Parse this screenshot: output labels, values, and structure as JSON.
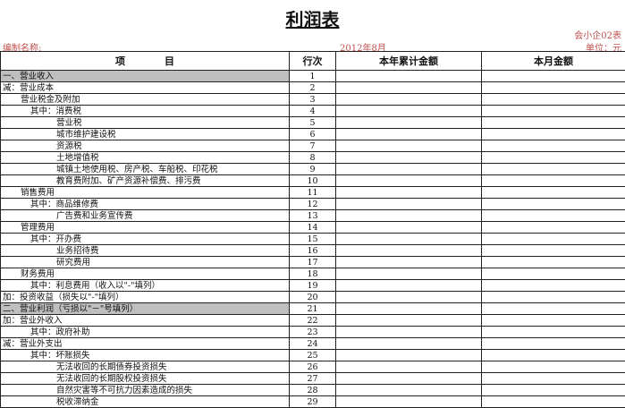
{
  "title": "利润表",
  "form_code": "会小企02表",
  "compiler_label": "编制名称:",
  "period": "2012年8月",
  "unit": "单位：元",
  "headers": {
    "item": "项　　　　目",
    "line": "行次",
    "ytd": "本年累计金额",
    "month": "本月金额"
  },
  "rows": [
    {
      "item": "一、营业收入",
      "line": "1",
      "indent": 0,
      "gray": true
    },
    {
      "item": "减：营业成本",
      "line": "2",
      "indent": 0
    },
    {
      "item": "营业税金及附加",
      "line": "3",
      "indent": 1
    },
    {
      "item": "其中：消费税",
      "line": "4",
      "indent": 2
    },
    {
      "item": "营业税",
      "line": "5",
      "indent": 3
    },
    {
      "item": "城市维护建设税",
      "line": "6",
      "indent": 3
    },
    {
      "item": "资源税",
      "line": "7",
      "indent": 3
    },
    {
      "item": "土地增值税",
      "line": "8",
      "indent": 3
    },
    {
      "item": "城镇土地使用税、房产税、车船税、印花税",
      "line": "9",
      "indent": 3
    },
    {
      "item": "教育费附加、矿产资源补偿费、排污费",
      "line": "10",
      "indent": 3
    },
    {
      "item": "销售费用",
      "line": "11",
      "indent": 1
    },
    {
      "item": "其中：商品维修费",
      "line": "12",
      "indent": 2
    },
    {
      "item": "广告费和业务宣传费",
      "line": "13",
      "indent": 3
    },
    {
      "item": "管理费用",
      "line": "14",
      "indent": 1
    },
    {
      "item": "其中：开办费",
      "line": "15",
      "indent": 2
    },
    {
      "item": "业务招待费",
      "line": "16",
      "indent": 3
    },
    {
      "item": "研究费用",
      "line": "17",
      "indent": 3
    },
    {
      "item": "财务费用",
      "line": "18",
      "indent": 1
    },
    {
      "item": "其中：利息费用（收入以\"-\"填列）",
      "line": "19",
      "indent": 2
    },
    {
      "item": "加：投资收益（损失以\"-\"填列）",
      "line": "20",
      "indent": 0
    },
    {
      "item": "二、营业利润（亏损以\"－\"号填列）",
      "line": "21",
      "indent": 0,
      "gray": true
    },
    {
      "item": "加：营业外收入",
      "line": "22",
      "indent": 0
    },
    {
      "item": "其中：政府补助",
      "line": "23",
      "indent": 2
    },
    {
      "item": "减：营业外支出",
      "line": "24",
      "indent": 0
    },
    {
      "item": "其中：坏账损失",
      "line": "25",
      "indent": 2
    },
    {
      "item": "无法收回的长期债券投资损失",
      "line": "26",
      "indent": 3
    },
    {
      "item": "无法收回的长期股权投资损失",
      "line": "27",
      "indent": 3
    },
    {
      "item": "自然灾害等不可抗力因素造成的损失",
      "line": "28",
      "indent": 3
    },
    {
      "item": "税收滞纳金",
      "line": "29",
      "indent": 3
    }
  ]
}
